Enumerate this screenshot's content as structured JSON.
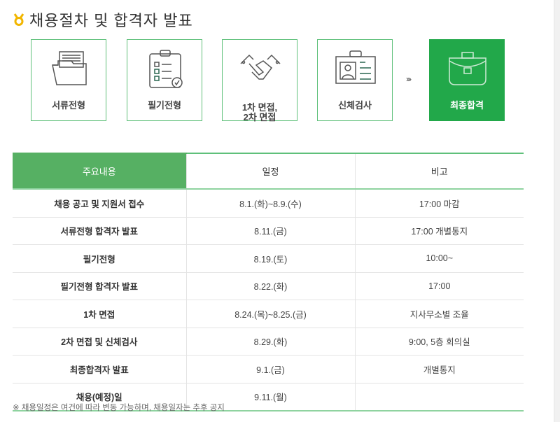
{
  "header": {
    "title": "채용절차 및 합격자 발표",
    "icon": "medal-icon",
    "icon_color": "#f2b600"
  },
  "steps": [
    {
      "label": "서류전형",
      "icon": "folder-document-icon"
    },
    {
      "label": "필기전형",
      "icon": "clipboard-checklist-icon"
    },
    {
      "label_line1": "1차 면접,",
      "label_line2": "2차 면접",
      "icon": "handshake-icon"
    },
    {
      "label": "신체검사",
      "icon": "id-card-icon"
    },
    {
      "label": "최종합격",
      "icon": "briefcase-icon",
      "active": true
    }
  ],
  "arrow_text": "›››",
  "colors": {
    "accent": "#22a84a",
    "header_cell": "#56b063",
    "border": "#5fc07a"
  },
  "table": {
    "headers": [
      "주요내용",
      "일정",
      "비고"
    ],
    "rows": [
      [
        "채용 공고 및 지원서 접수",
        "8.1.(화)~8.9.(수)",
        "17:00 마감"
      ],
      [
        "서류전형 합격자 발표",
        "8.11.(금)",
        "17:00 개별통지"
      ],
      [
        "필기전형",
        "8.19.(토)",
        "10:00~"
      ],
      [
        "필기전형 합격자 발표",
        "8.22.(화)",
        "17:00"
      ],
      [
        "1차 면접",
        "8.24.(목)~8.25.(금)",
        "지사무소별 조율"
      ],
      [
        "2차 면접 및 신체검사",
        "8.29.(화)",
        "9:00, 5층 회의실"
      ],
      [
        "최종합격자 발표",
        "9.1.(금)",
        "개별통지"
      ],
      [
        "채용(예정)일",
        "9.11.(월)",
        ""
      ]
    ]
  },
  "note": "※ 채용일정은 여건에 따라 변동 가능하며, 채용일자는 추후 공지"
}
